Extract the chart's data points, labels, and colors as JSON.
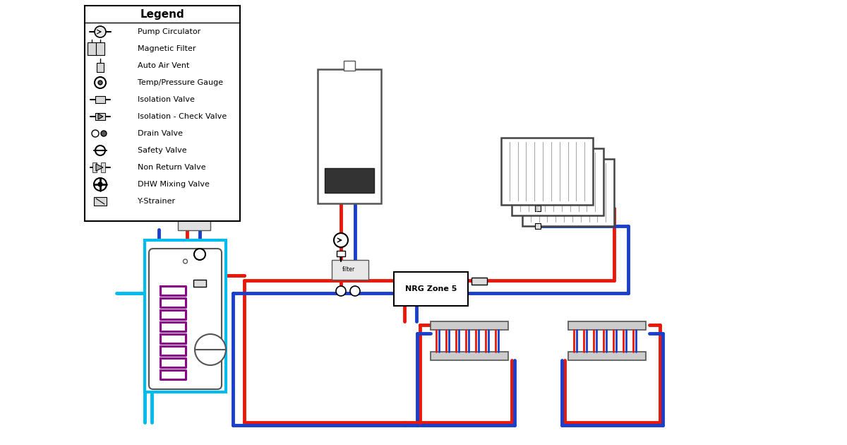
{
  "bg_color": "#ffffff",
  "line_red": "#e8190a",
  "line_blue": "#1a3fcc",
  "line_blue_light": "#00bbee",
  "line_purple": "#8b008b",
  "line_gray": "#444444",
  "lw": 3.5,
  "legend_items": [
    "Pump Circulator",
    "Magnetic Filter",
    "Auto Air Vent",
    "Temp/Pressure Gauge",
    "Isolation Valve",
    "Isolation - Check Valve",
    "Drain Valve",
    "Safety Valve",
    "Non Return Valve",
    "DHW Mixing Valve",
    "Y-Strainer"
  ],
  "nrg_label": "NRG Zone 5"
}
